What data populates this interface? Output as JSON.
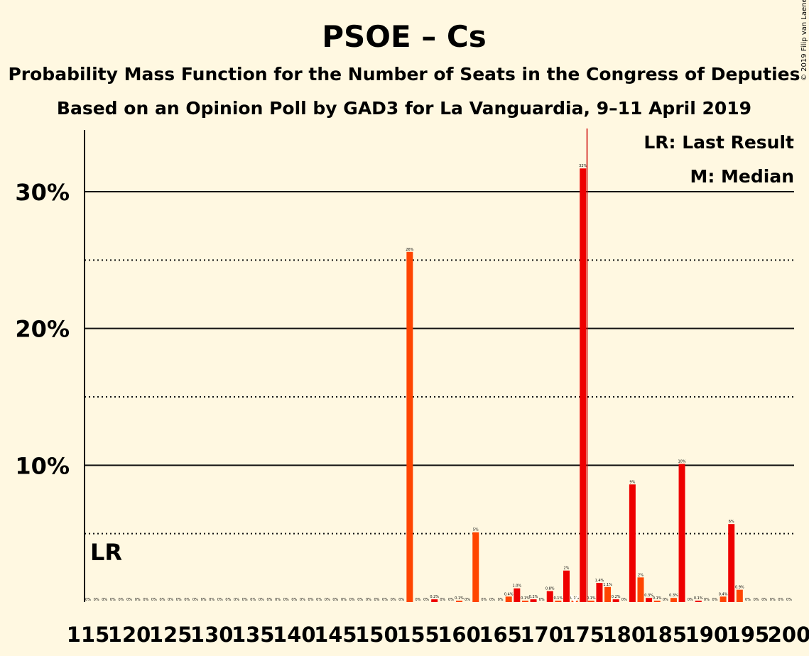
{
  "chart_data": {
    "type": "bar",
    "title": "PSOE – Cs",
    "subtitle1": "Probability Mass Function for the Number of Seats in the Congress of Deputies",
    "subtitle2": "Based on an Opinion Poll by GAD3 for La Vanguardia, 9–11 April 2019",
    "copyright": "© 2019 Filip van Laenen",
    "legend": {
      "lr": "LR: Last Result",
      "median": "M: Median"
    },
    "lr_label": "LR",
    "lr_seat": 116,
    "median_seat": 174,
    "last_result_line_seat": 175.5,
    "colors": {
      "bar_even": "#ff4500",
      "bar_odd": "#ee0000",
      "background": "#fff8e1",
      "vline": "#cc0000"
    },
    "xlim": [
      115,
      200
    ],
    "ylim": [
      0,
      34.5
    ],
    "yticks": [
      {
        "v": 10,
        "label": "10%"
      },
      {
        "v": 20,
        "label": "20%"
      },
      {
        "v": 30,
        "label": "30%"
      }
    ],
    "ygrid_dotted": [
      5,
      15,
      25
    ],
    "xticks": [
      115,
      120,
      125,
      130,
      135,
      140,
      145,
      150,
      155,
      160,
      165,
      170,
      175,
      180,
      185,
      190,
      195,
      200
    ],
    "seats": [
      115,
      116,
      117,
      118,
      119,
      120,
      121,
      122,
      123,
      124,
      125,
      126,
      127,
      128,
      129,
      130,
      131,
      132,
      133,
      134,
      135,
      136,
      137,
      138,
      139,
      140,
      141,
      142,
      143,
      144,
      145,
      146,
      147,
      148,
      149,
      150,
      151,
      152,
      153,
      154,
      155,
      156,
      157,
      158,
      159,
      160,
      161,
      162,
      163,
      164,
      165,
      166,
      167,
      168,
      169,
      170,
      171,
      172,
      173,
      174,
      175,
      176,
      177,
      178,
      179,
      180,
      181,
      182,
      183,
      184,
      185,
      186,
      187,
      188,
      189,
      190,
      191,
      192,
      193,
      194,
      195,
      196,
      197,
      198,
      199,
      200
    ],
    "values": [
      0,
      0,
      0,
      0,
      0,
      0,
      0,
      0,
      0,
      0,
      0,
      0,
      0,
      0,
      0,
      0,
      0,
      0,
      0,
      0,
      0,
      0,
      0,
      0,
      0,
      0,
      0,
      0,
      0,
      0,
      0,
      0,
      0,
      0,
      0,
      0,
      0,
      0,
      0,
      25.6,
      0,
      0,
      0.2,
      0,
      0,
      0.1,
      0,
      5.1,
      0,
      0,
      0,
      0.4,
      1.0,
      0.1,
      0.2,
      0,
      0.8,
      0.1,
      2.3,
      0.1,
      31.7,
      0.1,
      1.4,
      1.1,
      0.2,
      0,
      8.6,
      1.8,
      0.3,
      0.1,
      0,
      0.3,
      10.1,
      0,
      0.1,
      0,
      0,
      0.4,
      5.7,
      0.9,
      0,
      0,
      0,
      0,
      0,
      0
    ],
    "labels": [
      "0%",
      "0%",
      "0%",
      "0%",
      "0%",
      "0%",
      "0%",
      "0%",
      "0%",
      "0%",
      "0%",
      "0%",
      "0%",
      "0%",
      "0%",
      "0%",
      "0%",
      "0%",
      "0%",
      "0%",
      "0%",
      "0%",
      "0%",
      "0%",
      "0%",
      "0%",
      "0%",
      "0%",
      "0%",
      "0%",
      "0%",
      "0%",
      "0%",
      "0%",
      "0%",
      "0%",
      "0%",
      "0%",
      "0%",
      "26%",
      "0%",
      "0%",
      "0.2%",
      "0%",
      "0%",
      "0.1%",
      "0%",
      "5%",
      "0%",
      "0%",
      "0%",
      "0.4%",
      "1.0%",
      "0.1%",
      "0.2%",
      "0%",
      "0.8%",
      "0.1%",
      "2%",
      "0.1%",
      "32%",
      "0.1%",
      "1.4%",
      "1.1%",
      "0.2%",
      "0%",
      "9%",
      "2%",
      "0.3%",
      "0.1%",
      "0%",
      "0.3%",
      "10%",
      "0%",
      "0.1%",
      "0%",
      "0%",
      "0.4%",
      "6%",
      "0.9%",
      "0%",
      "0%",
      "0%",
      "0%",
      "0%",
      "0%"
    ]
  }
}
